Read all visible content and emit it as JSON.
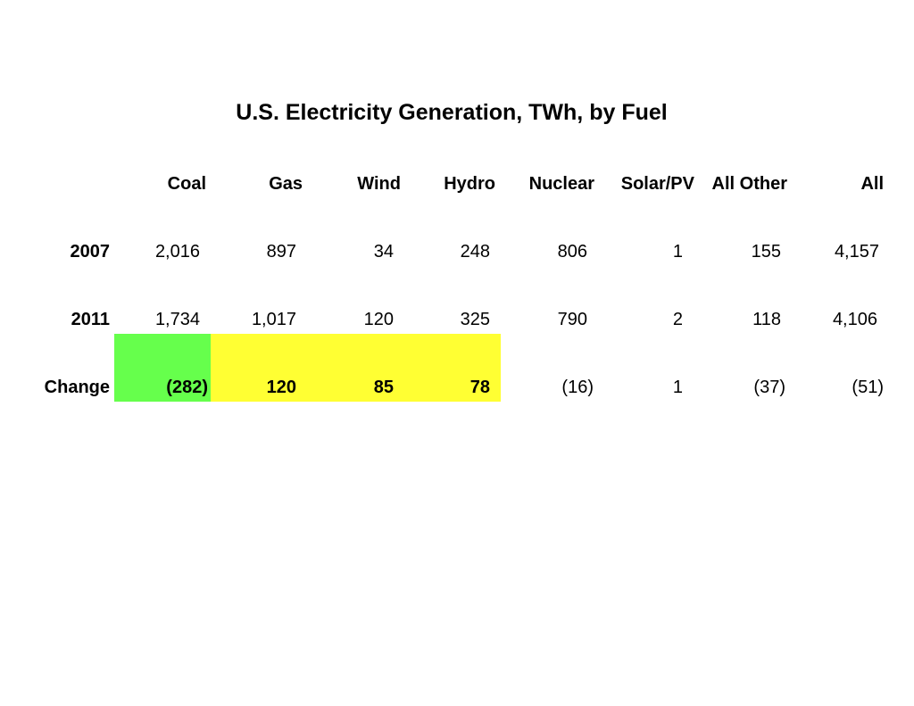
{
  "chart_data": {
    "type": "table",
    "title": "U.S. Electricity Generation, TWh, by Fuel",
    "columns": [
      "Coal",
      "Gas",
      "Wind",
      "Hydro",
      "Nuclear",
      "Solar/PV",
      "All Other",
      "All"
    ],
    "rows": [
      {
        "label": "2007",
        "values": [
          "2,016",
          "897",
          "34",
          "248",
          "806",
          "1",
          "155",
          "4,157"
        ]
      },
      {
        "label": "2011",
        "values": [
          "1,734",
          "1,017",
          "120",
          "325",
          "790",
          "2",
          "118",
          "4,106"
        ]
      },
      {
        "label": "Change",
        "values": [
          "(282)",
          "120",
          "85",
          "78",
          "(16)",
          "1",
          "(37)",
          "(51)"
        ]
      }
    ],
    "highlights": [
      {
        "row": "Change",
        "columns": [
          "Coal"
        ],
        "color": "#66ff4c"
      },
      {
        "row": "Change",
        "columns": [
          "Gas",
          "Wind",
          "Hydro"
        ],
        "color": "#ffff33"
      }
    ]
  }
}
